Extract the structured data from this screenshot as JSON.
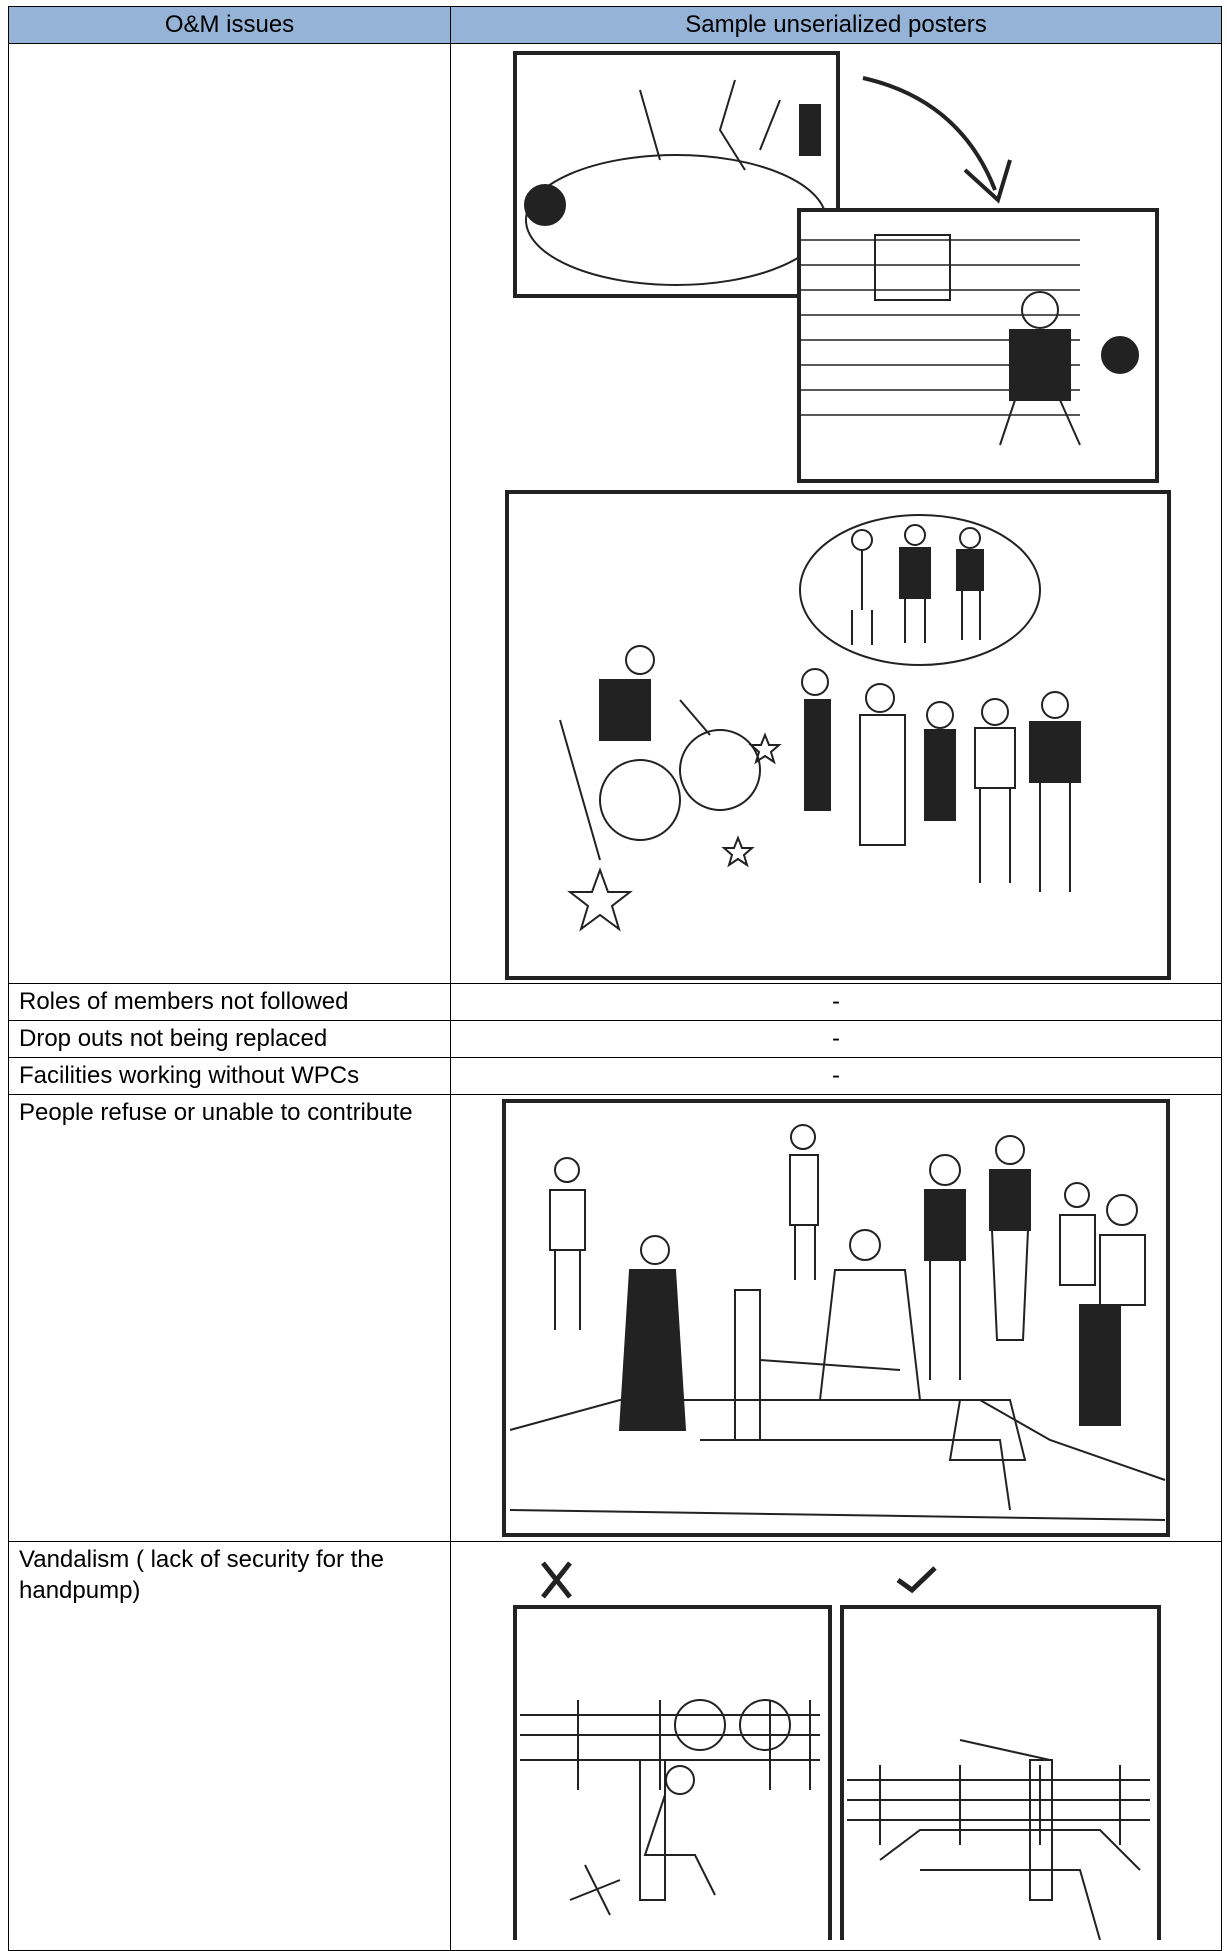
{
  "table": {
    "header": [
      "O&M issues",
      "Sample unserialized posters"
    ],
    "rows": [
      {
        "issue": "Roles of members not followed",
        "poster": "-"
      },
      {
        "issue": "Drop outs not being replaced",
        "poster": "-"
      },
      {
        "issue": "Facilities working without WPCs",
        "poster": "-"
      },
      {
        "issue": "People refuse or unable to contribute"
      },
      {
        "issue": "Vandalism ( lack of security for the handpump)"
      }
    ]
  }
}
